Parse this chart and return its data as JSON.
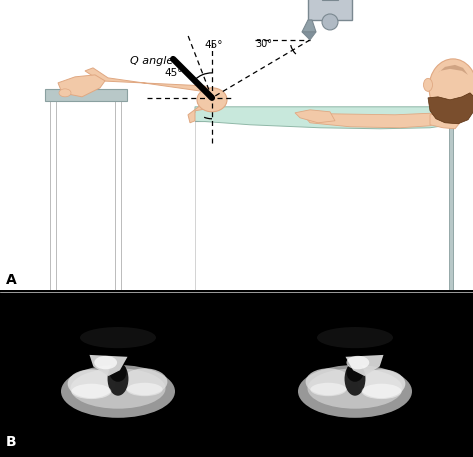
{
  "fig_width": 4.73,
  "fig_height": 4.57,
  "dpi": 100,
  "panel_A_label": "A",
  "panel_B_label": "B",
  "angle_30_label": "30°",
  "angle_45_upper_label": "45°",
  "angle_45_lower_label": "45°",
  "q_angle_label": "Q angle",
  "skin_color": "#f2c9a8",
  "skin_dark": "#e0a882",
  "table_color": "#b8c8c8",
  "table_edge": "#8aa0a0",
  "gown_color": "#c8e8dc",
  "gown_edge": "#90b8a8",
  "hair_color": "#7a4e2d",
  "xray_machine_color": "#b0bac0",
  "xray_machine_edge": "#7a8890"
}
